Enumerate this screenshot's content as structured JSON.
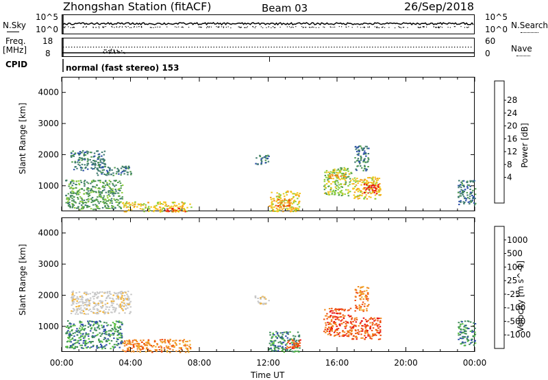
{
  "header": {
    "station": "Zhongshan Station (fitACF)",
    "beam": "Beam 03",
    "date": "26/Sep/2018"
  },
  "strip_labels": {
    "nsky": "N.Sky",
    "nsearch": "N.Search",
    "freq": "Freq.",
    "freq_unit": "[MHz]",
    "nave": "Nave",
    "cpid": "CPID",
    "cpid_value": "normal (fast stereo) 153",
    "nsky_ticks": [
      "10^5",
      "10^0"
    ],
    "nsearch_ticks": [
      "10^5",
      "10^0"
    ],
    "freq_ticks": [
      "18",
      "8"
    ],
    "nave_ticks": [
      "60",
      "0"
    ]
  },
  "colors": {
    "power": [
      "#1a1aff",
      "#2a4ea8",
      "#3e7a6e",
      "#4f9a50",
      "#8ccf3a",
      "#f2c51a",
      "#f5a020",
      "#ef7010",
      "#e84010",
      "#e81010"
    ],
    "velocity": [
      "#e81010",
      "#ef5010",
      "#f08a20",
      "#f2b030",
      "#c8c8c8",
      "#c8c8c8",
      "#58c040",
      "#3e8a5a",
      "#3050a8",
      "#2040d0"
    ]
  },
  "chart_data": [
    {
      "type": "heatmap",
      "name": "power",
      "xlabel": "",
      "ylabel": "Slant Range [km]",
      "colorbar_label": "Power [dB]",
      "colorbar_ticks": [
        "28",
        "24",
        "20",
        "16",
        "12",
        "8",
        "4"
      ],
      "xlim": [
        0,
        24
      ],
      "ylim": [
        180,
        4500
      ],
      "yticks": [
        "4000",
        "3000",
        "2000",
        "1000"
      ],
      "regions": [
        {
          "t0": 0.5,
          "t1": 2.5,
          "r0": 1500,
          "r1": 2150,
          "level": 2
        },
        {
          "t0": 2.0,
          "t1": 4.0,
          "r0": 1350,
          "r1": 1650,
          "level": 2
        },
        {
          "t0": 0.2,
          "t1": 3.5,
          "r0": 250,
          "r1": 1200,
          "level": 3
        },
        {
          "t0": 3.5,
          "t1": 7.5,
          "r0": 180,
          "r1": 500,
          "level": 5
        },
        {
          "t0": 6.0,
          "t1": 7.2,
          "r0": 180,
          "r1": 300,
          "level": 8
        },
        {
          "t0": 11.2,
          "t1": 12.0,
          "r0": 1700,
          "r1": 2000,
          "level": 2
        },
        {
          "t0": 12.0,
          "t1": 13.8,
          "r0": 180,
          "r1": 850,
          "level": 5
        },
        {
          "t0": 12.3,
          "t1": 13.2,
          "r0": 350,
          "r1": 600,
          "level": 7
        },
        {
          "t0": 15.2,
          "t1": 16.8,
          "r0": 700,
          "r1": 1600,
          "level": 4
        },
        {
          "t0": 15.5,
          "t1": 16.5,
          "r0": 1250,
          "r1": 1400,
          "level": 6
        },
        {
          "t0": 16.8,
          "t1": 18.5,
          "r0": 600,
          "r1": 1300,
          "level": 5
        },
        {
          "t0": 17.5,
          "t1": 18.4,
          "r0": 750,
          "r1": 1100,
          "level": 9
        },
        {
          "t0": 17.0,
          "t1": 17.8,
          "r0": 1500,
          "r1": 2300,
          "level": 2
        },
        {
          "t0": 23.0,
          "t1": 24.0,
          "r0": 400,
          "r1": 1200,
          "level": 2
        }
      ]
    },
    {
      "type": "heatmap",
      "name": "velocity",
      "xlabel": "Time UT",
      "ylabel": "Slant Range [km]",
      "colorbar_label": "Velocity [m s^-1]",
      "colorbar_ticks": [
        "1000",
        "500",
        "100",
        "25",
        "-25",
        "-100",
        "-500",
        "-1000"
      ],
      "xlim": [
        0,
        24
      ],
      "ylim": [
        180,
        4500
      ],
      "yticks": [
        "4000",
        "3000",
        "2000",
        "1000"
      ],
      "xticks": [
        "00:00",
        "04:00",
        "08:00",
        "12:00",
        "16:00",
        "20:00",
        "00:00"
      ],
      "regions": [
        {
          "t0": 0.5,
          "t1": 4.0,
          "r0": 1400,
          "r1": 2150,
          "level": 4
        },
        {
          "t0": 0.2,
          "t1": 3.5,
          "r0": 300,
          "r1": 1200,
          "level": 7
        },
        {
          "t0": 3.5,
          "t1": 7.5,
          "r0": 180,
          "r1": 600,
          "level": 2
        },
        {
          "t0": 11.2,
          "t1": 12.0,
          "r0": 1700,
          "r1": 2000,
          "level": 4
        },
        {
          "t0": 12.0,
          "t1": 13.8,
          "r0": 180,
          "r1": 850,
          "level": 7
        },
        {
          "t0": 13.0,
          "t1": 14.0,
          "r0": 300,
          "r1": 600,
          "level": 1
        },
        {
          "t0": 15.2,
          "t1": 16.8,
          "r0": 700,
          "r1": 1600,
          "level": 1
        },
        {
          "t0": 16.8,
          "t1": 18.5,
          "r0": 600,
          "r1": 1300,
          "level": 1
        },
        {
          "t0": 17.0,
          "t1": 17.8,
          "r0": 1500,
          "r1": 2300,
          "level": 2
        },
        {
          "t0": 23.0,
          "t1": 24.0,
          "r0": 400,
          "r1": 1200,
          "level": 7
        }
      ]
    }
  ]
}
